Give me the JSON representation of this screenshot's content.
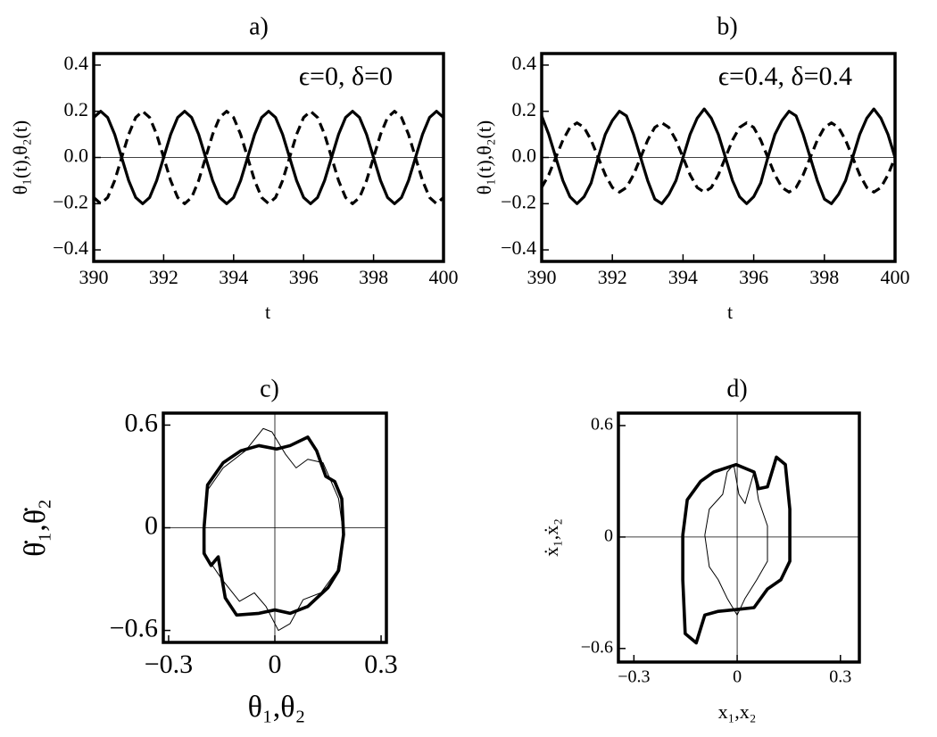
{
  "chart_data": [
    {
      "type": "line",
      "title": "a)",
      "annotation": "ϵ=0, δ=0",
      "xlabel": "t",
      "ylabel": "θ₁(t),θ₂(t)",
      "xlim": [
        390,
        400
      ],
      "ylim": [
        -0.45,
        0.45
      ],
      "xticks": [
        390,
        392,
        394,
        396,
        398,
        400
      ],
      "yticks": [
        {
          "value": -0.4,
          "label": "−0.4"
        },
        {
          "value": -0.2,
          "label": "−0.2"
        },
        {
          "value": 0,
          "label": "0.0"
        },
        0.2,
        0.4
      ],
      "x": [
        390,
        390.2,
        390.4,
        390.6,
        390.8,
        391,
        391.2,
        391.4,
        391.6,
        391.8,
        392,
        392.2,
        392.4,
        392.6,
        392.8,
        393,
        393.2,
        393.4,
        393.6,
        393.8,
        394,
        394.2,
        394.4,
        394.6,
        394.8,
        395,
        395.2,
        395.4,
        395.6,
        395.8,
        396,
        396.2,
        396.4,
        396.6,
        396.8,
        397,
        397.2,
        397.4,
        397.6,
        397.8,
        398,
        398.2,
        398.4,
        398.6,
        398.8,
        399,
        399.2,
        399.4,
        399.6,
        399.8,
        400
      ],
      "series": [
        {
          "color": "#000000",
          "dash": "solid",
          "values": [
            0.173,
            0.2,
            0.173,
            0.1,
            0,
            -0.1,
            -0.173,
            -0.2,
            -0.173,
            -0.1,
            0,
            0.1,
            0.173,
            0.2,
            0.173,
            0.1,
            0,
            -0.1,
            -0.173,
            -0.2,
            -0.173,
            -0.1,
            0,
            0.1,
            0.173,
            0.2,
            0.173,
            0.1,
            0,
            -0.1,
            -0.173,
            -0.2,
            -0.173,
            -0.1,
            0,
            0.1,
            0.173,
            0.2,
            0.173,
            0.1,
            0,
            -0.1,
            -0.173,
            -0.2,
            -0.173,
            -0.1,
            0,
            0.1,
            0.173,
            0.2,
            0.173
          ]
        },
        {
          "color": "#000000",
          "dash": "dashed",
          "values": [
            -0.173,
            -0.2,
            -0.173,
            -0.1,
            0,
            0.1,
            0.173,
            0.2,
            0.173,
            0.1,
            0,
            -0.1,
            -0.173,
            -0.2,
            -0.173,
            -0.1,
            0,
            0.1,
            0.173,
            0.2,
            0.173,
            0.1,
            0,
            -0.1,
            -0.173,
            -0.2,
            -0.173,
            -0.1,
            0,
            0.1,
            0.173,
            0.2,
            0.173,
            0.1,
            0,
            -0.1,
            -0.173,
            -0.2,
            -0.173,
            -0.1,
            0,
            0.1,
            0.173,
            0.2,
            0.173,
            0.1,
            0,
            -0.1,
            -0.173,
            -0.2,
            -0.173
          ]
        }
      ]
    },
    {
      "type": "line",
      "title": "b)",
      "annotation": "ϵ=0.4, δ=0.4",
      "xlabel": "t",
      "ylabel": "θ₁(t),θ₂(t)",
      "xlim": [
        390,
        400
      ],
      "ylim": [
        -0.45,
        0.45
      ],
      "xticks": [
        390,
        392,
        394,
        396,
        398,
        400
      ],
      "yticks": [
        {
          "value": -0.4,
          "label": "−0.4"
        },
        {
          "value": -0.2,
          "label": "−0.2"
        },
        {
          "value": 0,
          "label": "0.0"
        },
        0.2,
        0.4
      ],
      "x": [
        390,
        390.2,
        390.4,
        390.6,
        390.8,
        391,
        391.2,
        391.4,
        391.6,
        391.8,
        392,
        392.2,
        392.4,
        392.6,
        392.8,
        393,
        393.2,
        393.4,
        393.6,
        393.8,
        394,
        394.2,
        394.4,
        394.6,
        394.8,
        395,
        395.2,
        395.4,
        395.6,
        395.8,
        396,
        396.2,
        396.4,
        396.6,
        396.8,
        397,
        397.2,
        397.4,
        397.6,
        397.8,
        398,
        398.2,
        398.4,
        398.6,
        398.8,
        399,
        399.2,
        399.4,
        399.6,
        399.8,
        400
      ],
      "series": [
        {
          "color": "#000000",
          "dash": "solid",
          "values": [
            0.18,
            0.1,
            0,
            -0.1,
            -0.17,
            -0.2,
            -0.17,
            -0.11,
            0,
            0.1,
            0.16,
            0.2,
            0.18,
            0.1,
            0,
            -0.1,
            -0.18,
            -0.2,
            -0.16,
            -0.1,
            0,
            0.1,
            0.17,
            0.21,
            0.17,
            0.1,
            0,
            -0.1,
            -0.17,
            -0.2,
            -0.17,
            -0.11,
            0,
            0.1,
            0.16,
            0.2,
            0.18,
            0.1,
            0,
            -0.1,
            -0.18,
            -0.2,
            -0.16,
            -0.1,
            0,
            0.1,
            0.17,
            0.21,
            0.17,
            0.1,
            0
          ]
        },
        {
          "color": "#000000",
          "dash": "dashed",
          "values": [
            -0.13,
            -0.075,
            0,
            0.075,
            0.13,
            0.15,
            0.13,
            0.075,
            0,
            -0.075,
            -0.13,
            -0.15,
            -0.13,
            -0.075,
            0,
            0.075,
            0.13,
            0.15,
            0.13,
            0.075,
            0,
            -0.075,
            -0.13,
            -0.15,
            -0.13,
            -0.075,
            0,
            0.075,
            0.13,
            0.15,
            0.13,
            0.075,
            0,
            -0.075,
            -0.13,
            -0.15,
            -0.13,
            -0.075,
            0,
            0.075,
            0.13,
            0.15,
            0.13,
            0.075,
            0,
            -0.075,
            -0.13,
            -0.15,
            -0.13,
            -0.075,
            0
          ]
        }
      ]
    },
    {
      "type": "phase",
      "title": "c)",
      "xlabel": "θ₁,θ₂",
      "ylabel": "θ̇₁,θ̇₂",
      "xlim": [
        -0.315,
        0.315
      ],
      "ylim": [
        -0.67,
        0.67
      ],
      "xticks": [
        {
          "value": -0.3,
          "label": "−0.3"
        },
        0,
        0.3
      ],
      "yticks": [
        {
          "value": -0.6,
          "label": "−0.6"
        },
        0,
        0.6
      ],
      "series": [
        {
          "color": "#000000",
          "width": "thick",
          "x": [
            -0.2,
            -0.19,
            -0.146,
            -0.096,
            -0.045,
            0.005,
            0.043,
            0.093,
            0.118,
            0.144,
            0.169,
            0.189,
            0.194,
            0.18,
            0.15,
            0.093,
            0.043,
            0,
            -0.045,
            -0.108,
            -0.14,
            -0.16,
            -0.18,
            -0.2,
            -0.2
          ],
          "values": [
            0,
            0.25,
            0.38,
            0.45,
            0.48,
            0.46,
            0.48,
            0.53,
            0.45,
            0.3,
            0.27,
            0.17,
            -0.04,
            -0.25,
            -0.35,
            -0.46,
            -0.5,
            -0.48,
            -0.5,
            -0.51,
            -0.41,
            -0.17,
            -0.22,
            -0.15,
            0
          ]
        },
        {
          "color": "#000000",
          "width": "thin",
          "x": [
            -0.2,
            -0.19,
            -0.146,
            -0.083,
            -0.033,
            -0.008,
            0.03,
            0.06,
            0.093,
            0.136,
            0.18,
            0.194,
            0.176,
            0.13,
            0.08,
            0.043,
            0.01,
            -0.025,
            -0.058,
            -0.1,
            -0.15,
            -0.196,
            -0.2
          ],
          "values": [
            0,
            0.22,
            0.35,
            0.45,
            0.58,
            0.56,
            0.43,
            0.35,
            0.4,
            0.38,
            0.17,
            -0.04,
            -0.25,
            -0.38,
            -0.42,
            -0.56,
            -0.6,
            -0.46,
            -0.38,
            -0.43,
            -0.3,
            -0.16,
            0
          ]
        }
      ]
    },
    {
      "type": "phase",
      "title": "d)",
      "xlabel": "x₁,x₂",
      "ylabel": "ẋ₁,ẋ₂",
      "xlim": [
        -0.345,
        0.355
      ],
      "ylim": [
        -0.673,
        0.667
      ],
      "xticks": [
        {
          "value": -0.3,
          "label": "−0.3"
        },
        0,
        0.3
      ],
      "yticks": [
        {
          "value": -0.6,
          "label": "−0.6"
        },
        0,
        0.6
      ],
      "series": [
        {
          "color": "#000000",
          "width": "thick",
          "x": [
            -0.158,
            -0.145,
            -0.106,
            -0.068,
            -0.003,
            0.049,
            0.062,
            0.088,
            0.114,
            0.14,
            0.153,
            0.153,
            0.127,
            0.088,
            0.049,
            0,
            -0.055,
            -0.094,
            -0.119,
            -0.151,
            -0.158,
            -0.158
          ],
          "values": [
            0.01,
            0.2,
            0.3,
            0.35,
            0.39,
            0.35,
            0.26,
            0.27,
            0.43,
            0.39,
            0.15,
            -0.13,
            -0.23,
            -0.28,
            -0.38,
            -0.39,
            -0.4,
            -0.42,
            -0.57,
            -0.52,
            -0.23,
            0.01
          ]
        },
        {
          "color": "#000000",
          "width": "thin",
          "x": [
            -0.094,
            -0.081,
            -0.042,
            -0.029,
            -0.01,
            0.005,
            0.023,
            0.049,
            0.062,
            0.088,
            0.088,
            0.057,
            0.023,
            0,
            -0.029,
            -0.055,
            -0.081,
            -0.094
          ],
          "values": [
            0.01,
            0.15,
            0.23,
            0.35,
            0.39,
            0.23,
            0.18,
            0.35,
            0.2,
            0.06,
            -0.13,
            -0.23,
            -0.33,
            -0.42,
            -0.33,
            -0.23,
            -0.16,
            0.01
          ]
        }
      ]
    }
  ]
}
